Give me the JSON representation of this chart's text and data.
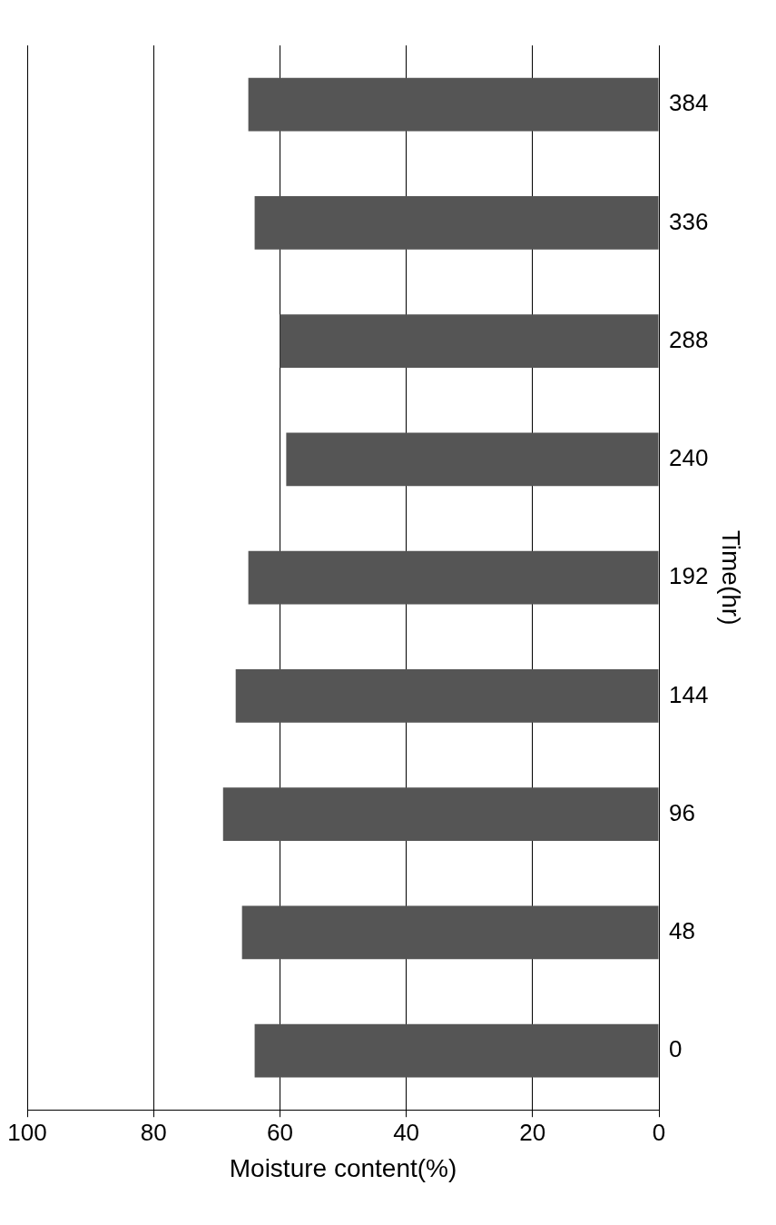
{
  "chart_data": {
    "type": "bar",
    "orientation": "horizontal",
    "categories": [
      "384",
      "336",
      "288",
      "240",
      "192",
      "144",
      "96",
      "48",
      "0"
    ],
    "values": [
      65,
      64,
      60,
      59,
      65,
      67,
      69,
      66,
      64
    ],
    "color": "#555555",
    "xlim": [
      100,
      0
    ],
    "xticks": [
      0,
      20,
      40,
      60,
      80,
      100
    ],
    "xlabel": "Moisture content(%)",
    "ylabel": "Time(hr)",
    "grid": "x",
    "legend": false
  }
}
